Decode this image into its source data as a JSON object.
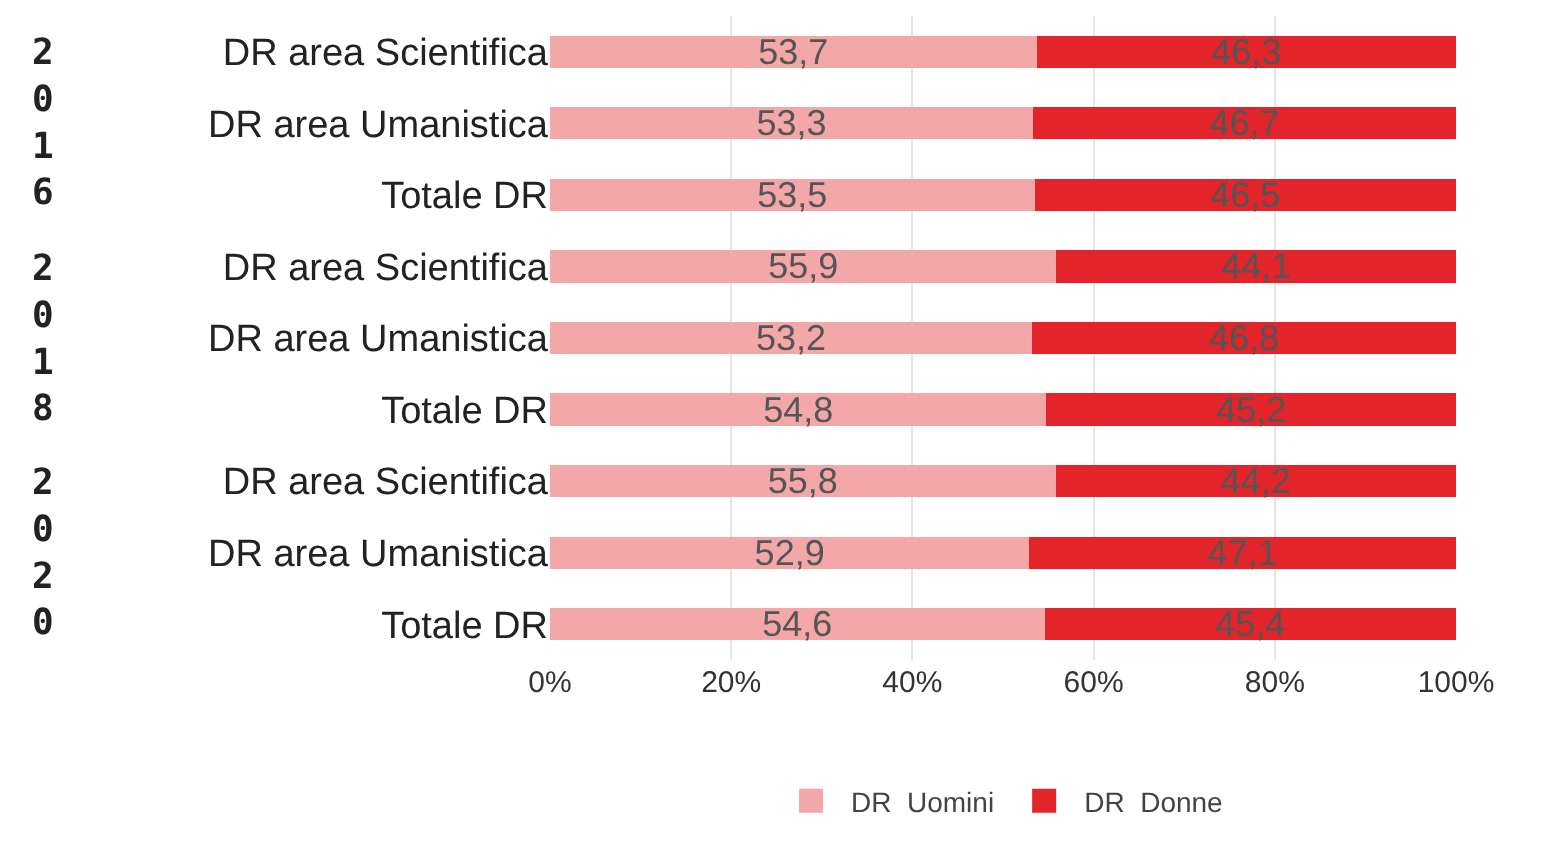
{
  "chart_data": {
    "type": "bar",
    "orientation": "horizontal",
    "stacked": true,
    "categories": [
      "DR area Scientifica",
      "DR area Umanistica",
      "Totale DR",
      "DR area Scientifica",
      "DR area Umanistica",
      "Totale DR",
      "DR area Scientifica",
      "DR area Umanistica",
      "Totale DR"
    ],
    "series": [
      {
        "name": "DR  Uomini",
        "color": "#f4a7a9",
        "values": [
          53.7,
          53.3,
          53.5,
          55.9,
          53.2,
          54.8,
          55.8,
          52.9,
          54.6
        ],
        "value_labels": [
          "53,7",
          "53,3",
          "53,5",
          "55,9",
          "53,2",
          "54,8",
          "55,8",
          "52,9",
          "54,6"
        ]
      },
      {
        "name": "DR  Donne",
        "color": "#e3252b",
        "values": [
          46.3,
          46.7,
          46.5,
          44.1,
          46.8,
          45.2,
          44.2,
          47.1,
          45.4
        ],
        "value_labels": [
          "46,3",
          "46,7",
          "46,5",
          "44,1",
          "46,8",
          "45,2",
          "44,2",
          "47,1",
          "45,4"
        ]
      }
    ],
    "xlim": [
      0,
      100
    ],
    "xticks": [
      {
        "value": 0,
        "label": "0%"
      },
      {
        "value": 20,
        "label": "20%"
      },
      {
        "value": 40,
        "label": "40%"
      },
      {
        "value": 60,
        "label": "60%"
      },
      {
        "value": 80,
        "label": "80%"
      },
      {
        "value": 100,
        "label": "100%"
      }
    ],
    "grid": "x",
    "legend": "bottom",
    "annotations": [
      "2016",
      "2018",
      "2020"
    ]
  }
}
